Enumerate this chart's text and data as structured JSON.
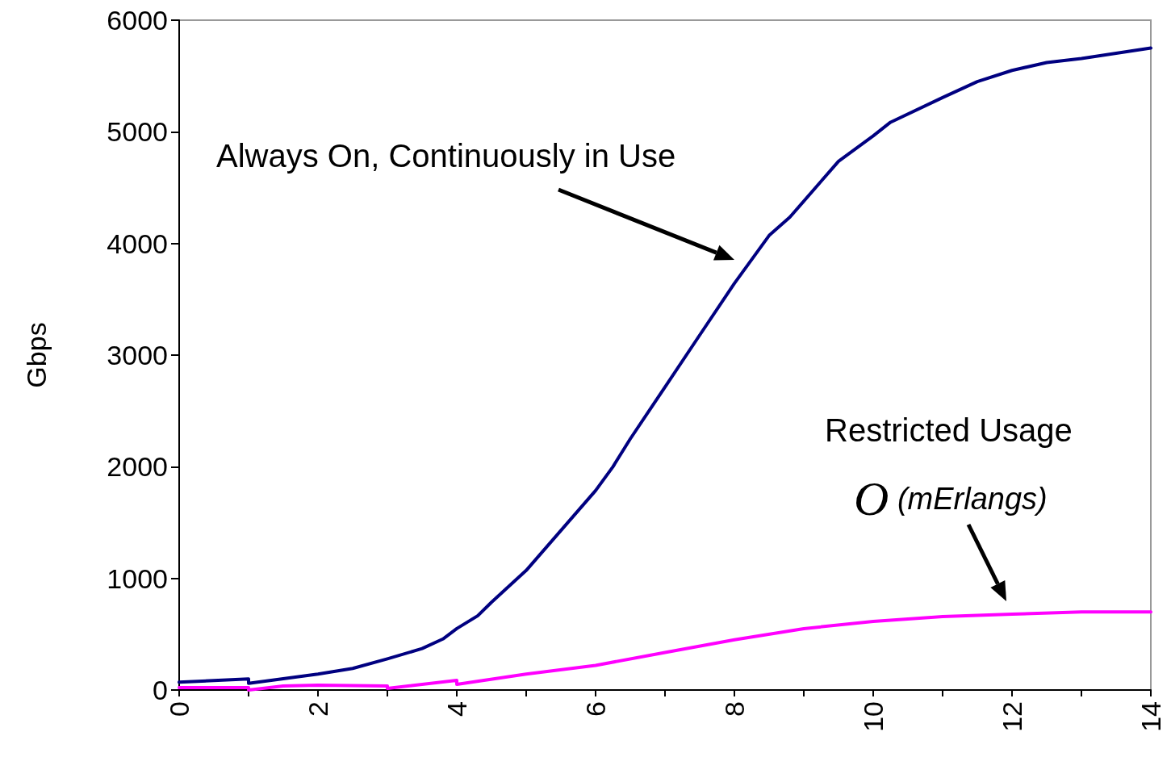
{
  "chart_data": {
    "type": "line",
    "ylabel": "Gbps",
    "xlim": [
      0,
      14
    ],
    "ylim": [
      0,
      6000
    ],
    "xticks": [
      0,
      {
        "value": 1,
        "label": null
      },
      2,
      {
        "value": 3,
        "label": null
      },
      4,
      {
        "value": 5,
        "label": null
      },
      6,
      {
        "value": 7,
        "label": null
      },
      8,
      {
        "value": 9,
        "label": null
      },
      10,
      {
        "value": 11,
        "label": null
      },
      12,
      {
        "value": 13,
        "label": null
      },
      14
    ],
    "yticks": [
      0,
      1000,
      2000,
      3000,
      4000,
      5000,
      6000
    ],
    "grid": false,
    "marker": "none",
    "line_style": "solid",
    "series": [
      {
        "color": "#000080",
        "x": [
          0,
          1,
          1,
          2,
          2.5,
          3,
          3.5,
          3.8,
          4,
          4.3,
          4.5,
          5,
          5.5,
          6,
          6.25,
          6.5,
          7,
          7.5,
          8,
          8.5,
          8.8,
          9.5,
          10,
          10.25,
          11,
          11.5,
          12,
          12.5,
          13,
          14
        ],
        "values": [
          70,
          100,
          60,
          143,
          193,
          279,
          371,
          457,
          550,
          664,
          786,
          1071,
          1429,
          1786,
          2000,
          2250,
          2714,
          3179,
          3643,
          4071,
          4236,
          4736,
          4964,
          5086,
          5307,
          5450,
          5550,
          5621,
          5657,
          5750
        ]
      },
      {
        "color": "#ff00ff",
        "x": [
          0,
          1,
          1,
          1.5,
          2,
          3,
          3,
          4,
          4,
          5,
          6,
          7,
          8,
          9,
          10,
          11,
          12,
          13,
          14
        ],
        "values": [
          21,
          21,
          0,
          36,
          43,
          36,
          14,
          86,
          50,
          143,
          221,
          336,
          450,
          550,
          614,
          657,
          679,
          700,
          700
        ]
      }
    ],
    "annotations": [
      "Always On, Continuously in Use",
      "Restricted Usage\nO (mErlangs)"
    ]
  }
}
